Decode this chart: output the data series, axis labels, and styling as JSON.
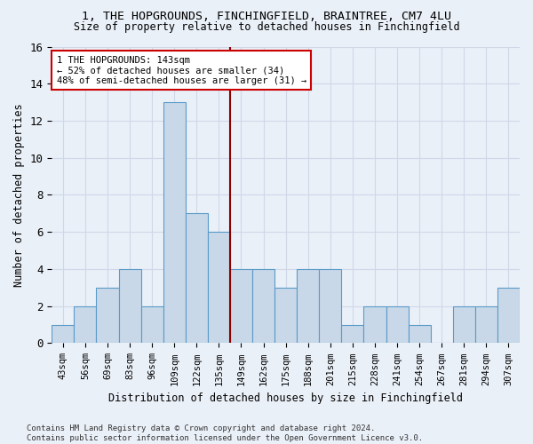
{
  "title_line1": "1, THE HOPGROUNDS, FINCHINGFIELD, BRAINTREE, CM7 4LU",
  "title_line2": "Size of property relative to detached houses in Finchingfield",
  "xlabel": "Distribution of detached houses by size in Finchingfield",
  "ylabel": "Number of detached properties",
  "bar_labels": [
    "43sqm",
    "56sqm",
    "69sqm",
    "83sqm",
    "96sqm",
    "109sqm",
    "122sqm",
    "135sqm",
    "149sqm",
    "162sqm",
    "175sqm",
    "188sqm",
    "201sqm",
    "215sqm",
    "228sqm",
    "241sqm",
    "254sqm",
    "267sqm",
    "281sqm",
    "294sqm",
    "307sqm"
  ],
  "bar_values": [
    1,
    2,
    3,
    4,
    2,
    13,
    7,
    6,
    4,
    4,
    3,
    4,
    4,
    1,
    2,
    2,
    1,
    0,
    2,
    2,
    3
  ],
  "bar_color": "#c8d8e8",
  "bar_edge_color": "#5a9bc8",
  "vline_x": 7.5,
  "vline_color": "#8b0000",
  "annotation_line1": "1 THE HOPGROUNDS: 143sqm",
  "annotation_line2": "← 52% of detached houses are smaller (34)",
  "annotation_line3": "48% of semi-detached houses are larger (31) →",
  "annotation_box_color": "#ffffff",
  "annotation_box_edge": "#cc0000",
  "ylim": [
    0,
    16
  ],
  "yticks": [
    0,
    2,
    4,
    6,
    8,
    10,
    12,
    14,
    16
  ],
  "grid_color": "#d0d8e8",
  "bg_color": "#eaf0f8",
  "footnote": "Contains HM Land Registry data © Crown copyright and database right 2024.\nContains public sector information licensed under the Open Government Licence v3.0."
}
